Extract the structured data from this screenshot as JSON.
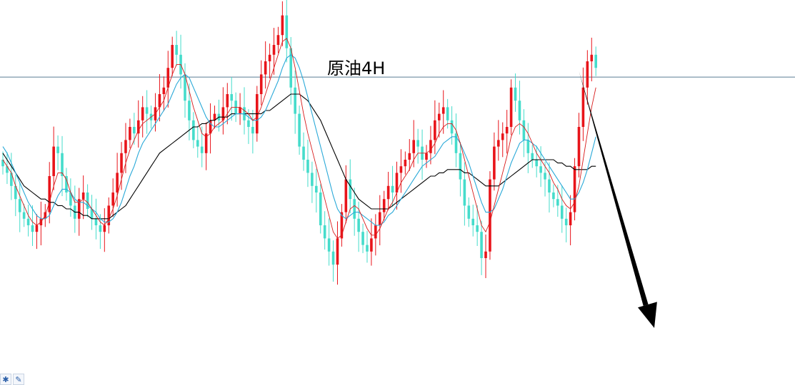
{
  "chart_data": {
    "type": "candlestick",
    "title": "原油4H",
    "ylim": [
      0,
      100
    ],
    "colors": {
      "up": "#e8141a",
      "down": "#45dccb",
      "ma_fast": "#d81b1b",
      "ma_mid": "#2aa9d8",
      "ma_slow": "#000000",
      "level_line": "#5a7d94",
      "arrow": "#000000"
    },
    "horizontal_level": 85.2,
    "projection": {
      "from_index": 136,
      "from_value": 87,
      "direction": "down"
    },
    "close": [
      58,
      56,
      52,
      48,
      44,
      42,
      40,
      38,
      40,
      42,
      44,
      55,
      64,
      62,
      55,
      50,
      46,
      42,
      48,
      50,
      45,
      42,
      40,
      38,
      40,
      46,
      50,
      56,
      62,
      66,
      70,
      68,
      72,
      76,
      74,
      72,
      76,
      80,
      82,
      88,
      95,
      92,
      86,
      78,
      72,
      66,
      64,
      62,
      68,
      72,
      74,
      72,
      76,
      80,
      78,
      74,
      76,
      72,
      70,
      68,
      80,
      86,
      90,
      92,
      95,
      98,
      104,
      94,
      82,
      74,
      64,
      60,
      56,
      52,
      50,
      40,
      36,
      32,
      28,
      36,
      44,
      54,
      48,
      42,
      38,
      34,
      32,
      36,
      40,
      44,
      48,
      52,
      50,
      56,
      58,
      60,
      62,
      66,
      64,
      60,
      62,
      66,
      72,
      74,
      76,
      72,
      68,
      62,
      54,
      46,
      42,
      40,
      38,
      30,
      32,
      54,
      64,
      66,
      68,
      70,
      82,
      78,
      72,
      66,
      62,
      60,
      58,
      56,
      54,
      50,
      48,
      46,
      42,
      40,
      44,
      58,
      70,
      82,
      90,
      92,
      88
    ],
    "ma_fast": [
      60,
      58,
      56,
      52,
      49,
      46,
      43,
      41,
      40,
      41,
      43,
      47,
      52,
      56,
      56,
      54,
      50,
      47,
      47,
      48,
      47,
      45,
      43,
      41,
      40,
      42,
      45,
      49,
      54,
      59,
      63,
      66,
      69,
      71,
      72,
      73,
      74,
      76,
      78,
      82,
      86,
      89,
      89,
      86,
      81,
      76,
      72,
      68,
      67,
      68,
      70,
      71,
      72,
      74,
      76,
      76,
      76,
      75,
      74,
      72,
      73,
      76,
      80,
      84,
      88,
      92,
      96,
      97,
      94,
      88,
      81,
      74,
      68,
      63,
      58,
      53,
      48,
      43,
      38,
      36,
      37,
      41,
      45,
      46,
      45,
      42,
      39,
      37,
      37,
      39,
      42,
      45,
      47,
      50,
      53,
      55,
      57,
      60,
      62,
      62,
      62,
      63,
      65,
      68,
      70,
      71,
      71,
      69,
      65,
      60,
      55,
      50,
      45,
      40,
      38,
      41,
      46,
      51,
      56,
      61,
      67,
      70,
      71,
      70,
      68,
      65,
      62,
      60,
      58,
      56,
      53,
      51,
      48,
      46,
      45,
      47,
      52,
      60,
      68,
      76,
      82
    ],
    "ma_mid": [
      64,
      62,
      59,
      56,
      53,
      50,
      47,
      45,
      43,
      42,
      42,
      43,
      46,
      49,
      51,
      51,
      50,
      48,
      47,
      47,
      46,
      45,
      44,
      42,
      41,
      41,
      42,
      44,
      47,
      51,
      55,
      58,
      62,
      65,
      67,
      69,
      71,
      73,
      75,
      77,
      80,
      83,
      85,
      86,
      85,
      82,
      79,
      76,
      73,
      71,
      70,
      70,
      71,
      72,
      73,
      74,
      74,
      74,
      73,
      72,
      72,
      73,
      75,
      78,
      81,
      84,
      88,
      91,
      92,
      91,
      88,
      84,
      79,
      74,
      69,
      64,
      59,
      54,
      49,
      45,
      43,
      42,
      43,
      44,
      44,
      43,
      42,
      41,
      40,
      40,
      41,
      43,
      44,
      46,
      48,
      50,
      52,
      54,
      56,
      58,
      59,
      60,
      61,
      63,
      65,
      66,
      67,
      67,
      65,
      62,
      59,
      55,
      51,
      47,
      44,
      44,
      45,
      48,
      51,
      55,
      59,
      62,
      65,
      66,
      66,
      65,
      64,
      62,
      60,
      58,
      56,
      54,
      52,
      50,
      48,
      48,
      50,
      53,
      57,
      62,
      67
    ],
    "ma_slow": [
      62,
      60,
      58,
      56,
      54,
      52,
      51,
      50,
      49,
      48,
      48,
      47,
      47,
      46,
      46,
      45,
      45,
      44,
      44,
      43,
      43,
      42,
      42,
      42,
      42,
      42,
      43,
      44,
      45,
      46,
      48,
      50,
      52,
      54,
      56,
      58,
      60,
      62,
      63,
      64,
      65,
      66,
      67,
      68,
      69,
      70,
      70,
      71,
      71,
      72,
      72,
      73,
      73,
      73,
      74,
      74,
      74,
      74,
      74,
      74,
      74,
      74,
      75,
      75,
      76,
      77,
      78,
      79,
      80,
      80,
      80,
      79,
      78,
      76,
      74,
      72,
      69,
      66,
      63,
      60,
      57,
      54,
      52,
      50,
      48,
      47,
      46,
      45,
      45,
      45,
      45,
      45,
      46,
      47,
      48,
      49,
      50,
      51,
      52,
      53,
      54,
      55,
      55,
      56,
      56,
      57,
      57,
      57,
      57,
      56,
      56,
      55,
      54,
      53,
      52,
      52,
      52,
      52,
      53,
      54,
      55,
      56,
      57,
      58,
      59,
      60,
      60,
      60,
      60,
      60,
      60,
      59,
      59,
      58,
      58,
      57,
      57,
      57,
      57,
      58,
      58
    ]
  },
  "tools": {
    "icon1": "magnet-icon",
    "icon2": "wrench-icon"
  }
}
